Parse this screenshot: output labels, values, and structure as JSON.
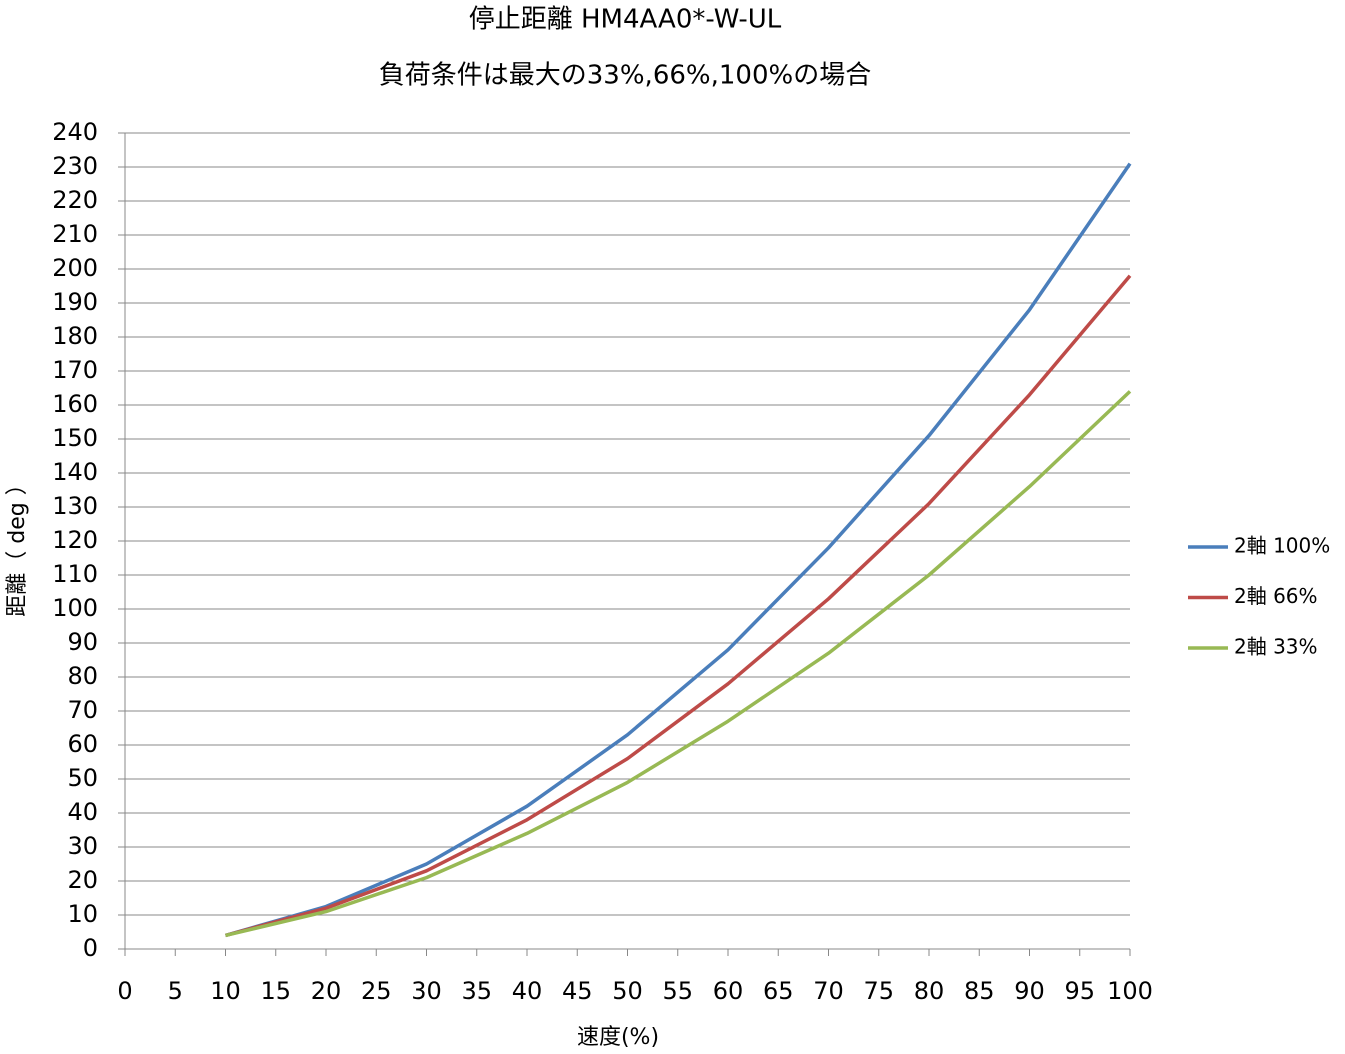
{
  "chart_data": {
    "type": "line",
    "title": "停止距離 HM4AA0*-W-UL",
    "subtitle": "負荷条件は最大の33%,66%,100%の場合",
    "x_label": "速度(%)",
    "y_label": "距離（ deg ）",
    "x": [
      10,
      20,
      30,
      40,
      50,
      60,
      70,
      80,
      90,
      100
    ],
    "series": [
      {
        "name": "2軸 100%",
        "color": "#4a7ebb",
        "values": [
          4,
          12.5,
          25,
          42,
          63,
          88,
          118,
          151,
          188,
          231
        ]
      },
      {
        "name": "2軸 66%",
        "color": "#be4b48",
        "values": [
          4,
          12,
          23,
          38,
          56,
          78,
          103,
          131,
          163,
          198
        ]
      },
      {
        "name": "2軸 33%",
        "color": "#98b954",
        "values": [
          4,
          11,
          21,
          34,
          49,
          67,
          87,
          110,
          136,
          164
        ]
      }
    ],
    "xlim": [
      0,
      100
    ],
    "xticks": [
      0,
      5,
      10,
      15,
      20,
      25,
      30,
      35,
      40,
      45,
      50,
      55,
      60,
      65,
      70,
      75,
      80,
      85,
      90,
      95,
      100
    ],
    "ylim": [
      0,
      240
    ],
    "yticks": [
      0,
      10,
      20,
      30,
      40,
      50,
      60,
      70,
      80,
      90,
      100,
      110,
      120,
      130,
      140,
      150,
      160,
      170,
      180,
      190,
      200,
      210,
      220,
      230,
      240
    ],
    "grid": true,
    "legend": "right"
  }
}
